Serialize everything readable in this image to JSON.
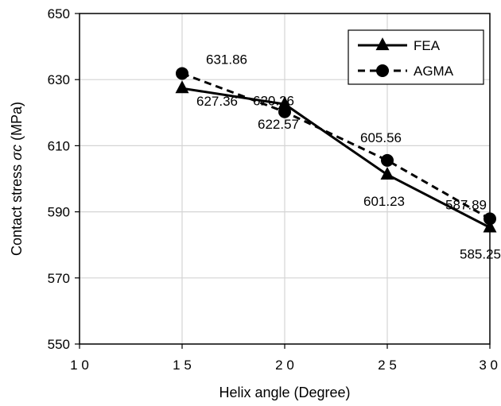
{
  "chart_data": {
    "type": "line",
    "title": "",
    "xlabel": "Helix angle (Degree)",
    "ylabel_prefix": "Contact stress ",
    "ylabel_symbol": "σc",
    "ylabel_suffix": " (MPa)",
    "xlim": [
      10,
      30
    ],
    "ylim": [
      550,
      650
    ],
    "xticks": [
      10,
      15,
      20,
      25,
      30
    ],
    "xtick_labels": [
      "1 0",
      "1 5",
      "2 0",
      "2 5",
      "3 0"
    ],
    "yticks": [
      550,
      570,
      590,
      610,
      630,
      650
    ],
    "ytick_labels": [
      "550",
      "570",
      "590",
      "610",
      "630",
      "650"
    ],
    "grid": true,
    "legend_position": "top-right",
    "x": [
      15,
      20,
      25,
      30
    ],
    "series": [
      {
        "name": "FEA",
        "values": [
          627.36,
          622.57,
          601.23,
          585.25
        ],
        "labels": [
          "627.36",
          "622.57",
          "601.23",
          "585.25"
        ],
        "marker": "triangle",
        "line_style": "solid",
        "color": "#000000"
      },
      {
        "name": "AGMA",
        "values": [
          631.86,
          620.26,
          605.56,
          587.89
        ],
        "labels": [
          "631.86",
          "620.26",
          "605.56",
          "587.89"
        ],
        "marker": "circle",
        "line_style": "dashed",
        "color": "#000000"
      }
    ]
  }
}
